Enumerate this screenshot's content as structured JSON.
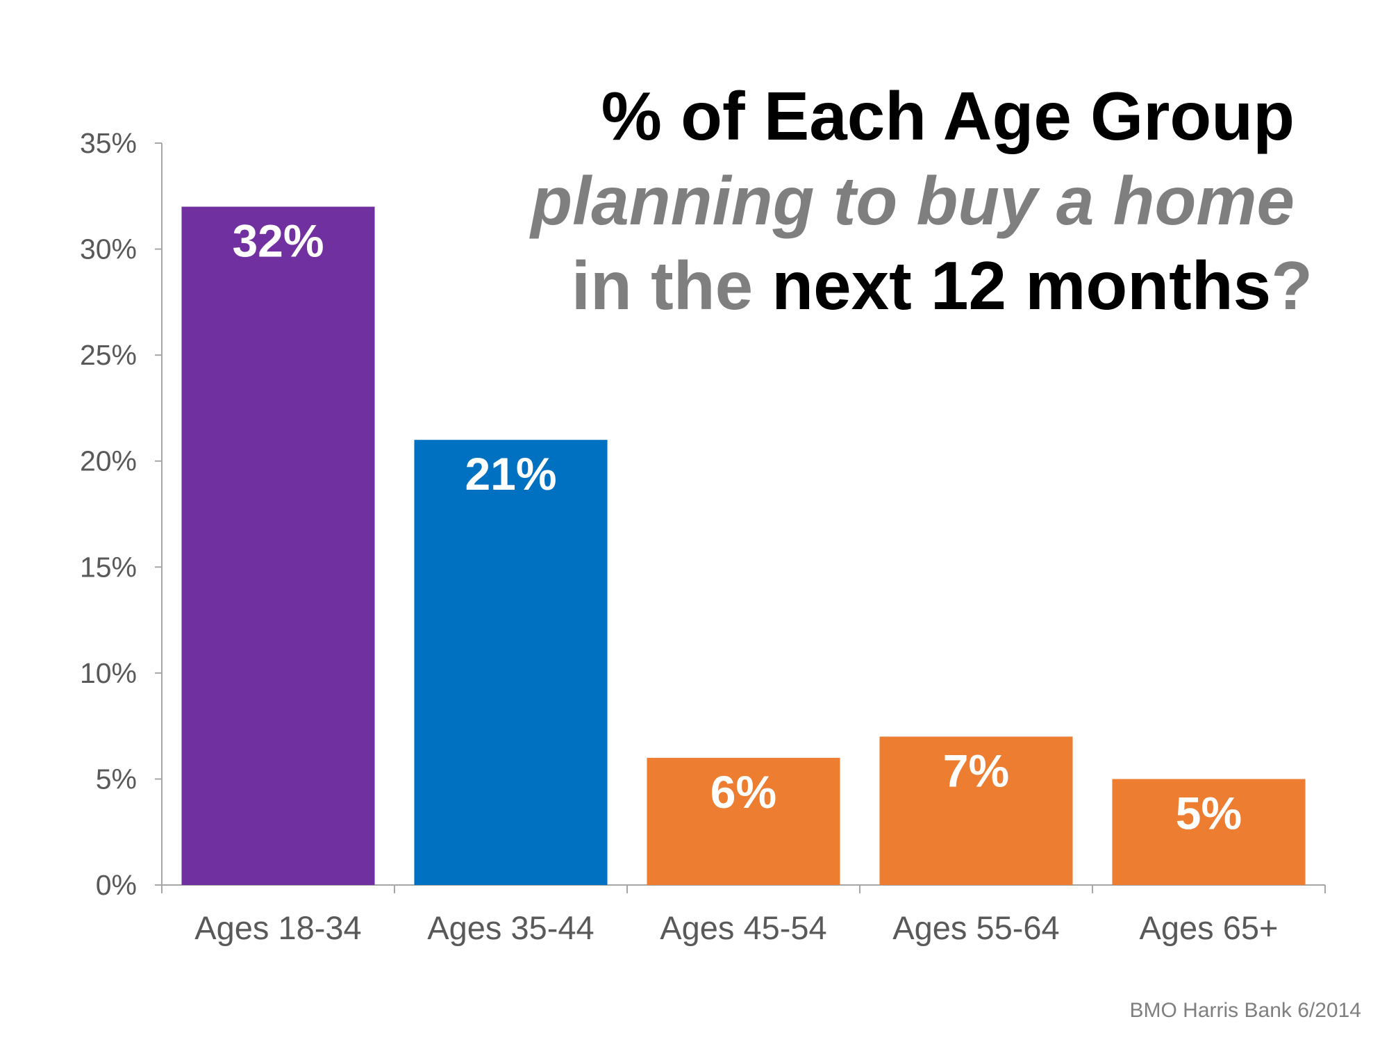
{
  "title": {
    "line1": "% of Each Age Group",
    "line2": "planning to buy a home",
    "line3_part1": "in the ",
    "line3_part2": "next 12 months",
    "line3_part3": "?"
  },
  "source": "BMO Harris Bank 6/2014",
  "chart_data": {
    "type": "bar",
    "title": "% of Each Age Group planning to buy a home in the next 12 months?",
    "categories": [
      "Ages 18-34",
      "Ages 35-44",
      "Ages 45-54",
      "Ages 55-64",
      "Ages 65+"
    ],
    "values": [
      32,
      21,
      6,
      7,
      5
    ],
    "value_labels": [
      "32%",
      "21%",
      "6%",
      "7%",
      "5%"
    ],
    "colors": [
      "#7030a0",
      "#0070c0",
      "#ed7d31",
      "#ed7d31",
      "#ed7d31"
    ],
    "ylim": [
      0,
      35
    ],
    "yticks": [
      0,
      5,
      10,
      15,
      20,
      25,
      30,
      35
    ],
    "ytick_labels": [
      "0%",
      "5%",
      "10%",
      "15%",
      "20%",
      "25%",
      "30%",
      "35%"
    ],
    "xlabel": "",
    "ylabel": "",
    "grid": false,
    "legend": false
  }
}
